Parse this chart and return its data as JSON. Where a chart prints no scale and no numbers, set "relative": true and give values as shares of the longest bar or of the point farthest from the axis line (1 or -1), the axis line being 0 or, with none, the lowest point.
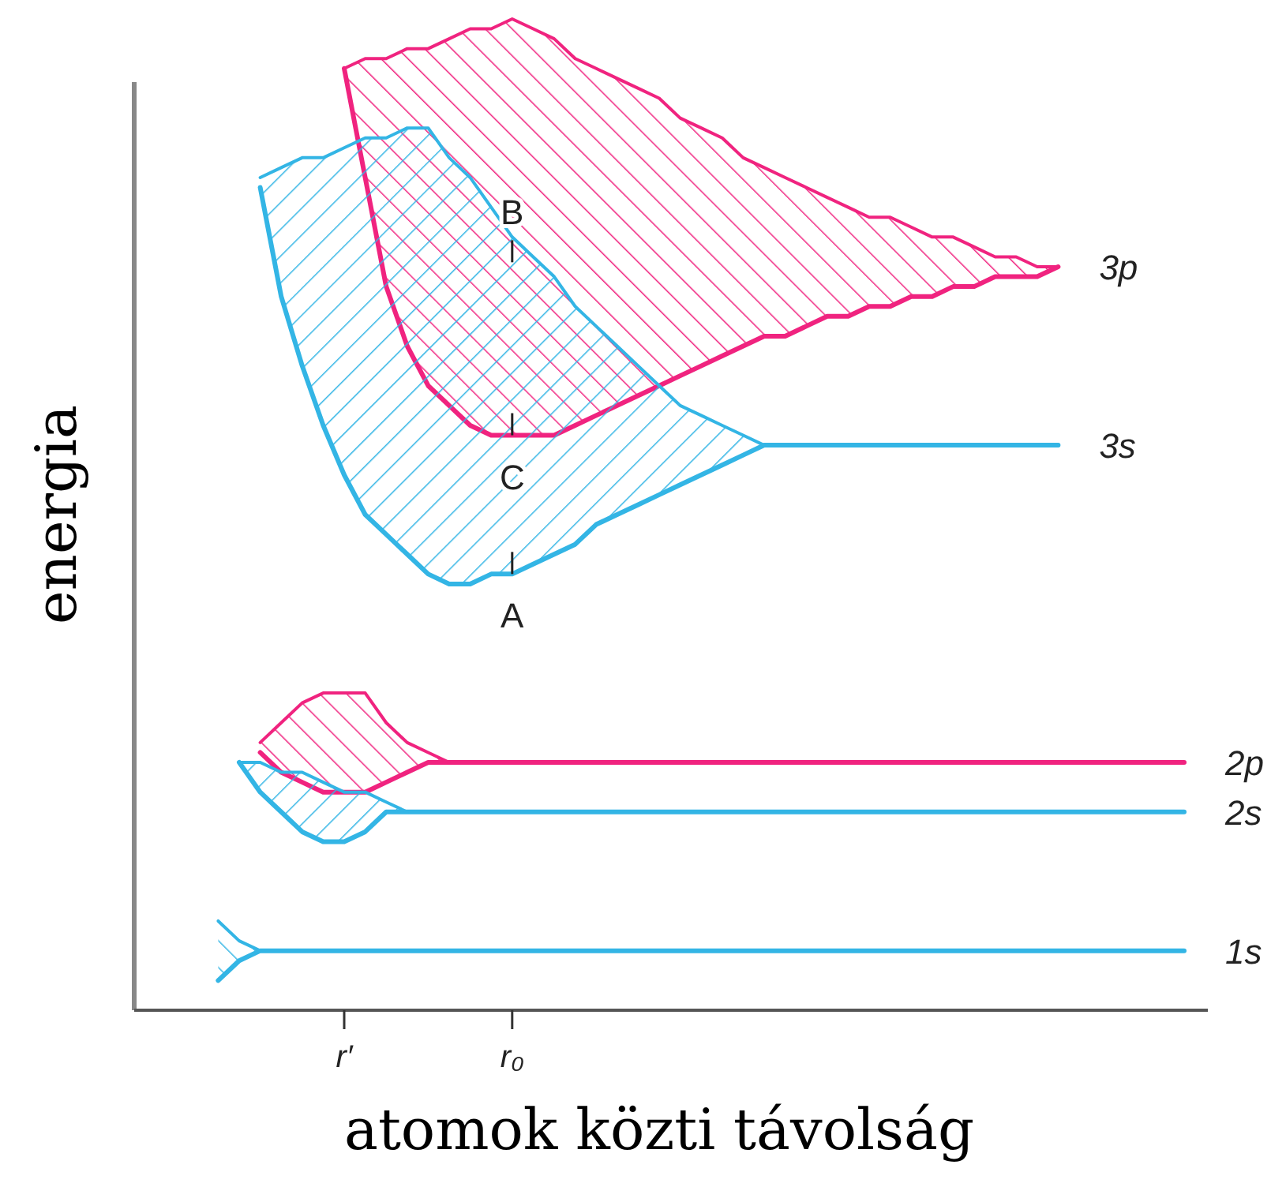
{
  "chart_data": {
    "type": "line",
    "relative": true,
    "xlabel": "atomok közti távolság",
    "ylabel": "energia",
    "categories": [
      null,
      null,
      null,
      null,
      null,
      null,
      null,
      null,
      null,
      null,
      "r′",
      null,
      null,
      null,
      null,
      null,
      null,
      null,
      "r₀",
      null,
      null,
      null,
      null,
      null,
      null,
      null,
      null,
      null,
      null,
      null,
      null,
      null,
      null,
      null,
      null,
      null,
      null,
      null,
      null,
      null,
      null,
      null,
      null,
      null,
      null,
      null,
      null,
      null,
      null,
      null,
      null
    ],
    "series": [
      {
        "name": "3p",
        "color": "#f0237f",
        "values": [
          null,
          null,
          null,
          null,
          null,
          null,
          null,
          null,
          null,
          null,
          0.95,
          0.84,
          0.73,
          0.67,
          0.63,
          0.61,
          0.59,
          0.58,
          0.58,
          0.58,
          0.58,
          0.59,
          0.6,
          0.61,
          0.62,
          0.63,
          0.64,
          0.65,
          0.66,
          0.67,
          0.68,
          0.68,
          0.69,
          0.7,
          0.7,
          0.71,
          0.71,
          0.72,
          0.72,
          0.73,
          0.73,
          0.74,
          0.74,
          0.74,
          0.75,
          null,
          null,
          null,
          null,
          null,
          null
        ],
        "lower": [
          null,
          null,
          null,
          null,
          null,
          null,
          null,
          null,
          null,
          null,
          0.95,
          0.84,
          0.73,
          0.67,
          0.63,
          0.61,
          0.59,
          0.58,
          0.58,
          0.58,
          0.58,
          0.59,
          0.6,
          0.61,
          0.62,
          0.63,
          0.64,
          0.65,
          0.66,
          0.67,
          0.68,
          0.68,
          0.69,
          0.7,
          0.7,
          0.71,
          0.71,
          0.72,
          0.72,
          0.73,
          0.73,
          0.74,
          0.74,
          0.74,
          0.75,
          null,
          null,
          null,
          null,
          null,
          null
        ],
        "upper": [
          null,
          null,
          null,
          null,
          null,
          null,
          null,
          null,
          null,
          null,
          0.95,
          0.96,
          0.96,
          0.97,
          0.97,
          0.98,
          0.99,
          0.99,
          1,
          0.99,
          0.98,
          0.96,
          0.95,
          0.94,
          0.93,
          0.92,
          0.9,
          0.89,
          0.88,
          0.86,
          0.85,
          0.84,
          0.83,
          0.82,
          0.81,
          0.8,
          0.8,
          0.79,
          0.78,
          0.78,
          0.77,
          0.76,
          0.76,
          0.75,
          0.75,
          null,
          null,
          null,
          null,
          null,
          null
        ]
      },
      {
        "color": "#f0237f",
        "values": [
          null,
          null,
          null,
          null,
          null,
          null,
          null,
          null,
          null,
          null,
          0.95,
          0.96,
          0.96,
          0.97,
          0.97,
          0.98,
          0.99,
          0.99,
          1,
          0.99,
          0.98,
          0.96,
          0.95,
          0.94,
          0.93,
          0.92,
          0.9,
          0.89,
          0.88,
          0.86,
          0.85,
          0.84,
          0.83,
          0.82,
          0.81,
          0.8,
          0.8,
          0.79,
          0.78,
          0.78,
          0.77,
          0.76,
          0.76,
          0.75,
          0.75,
          null,
          null,
          null,
          null,
          null,
          null
        ]
      },
      {
        "name": "3s",
        "color": "#33b5e5",
        "values": [
          null,
          null,
          null,
          null,
          null,
          null,
          0.83,
          0.72,
          0.65,
          0.59,
          0.54,
          0.5,
          0.48,
          0.46,
          0.44,
          0.43,
          0.43,
          0.44,
          0.44,
          0.45,
          0.46,
          0.47,
          0.49,
          0.5,
          0.51,
          0.52,
          0.53,
          0.54,
          0.55,
          0.56,
          0.57,
          0.57,
          0.57,
          0.57,
          0.57,
          0.57,
          0.57,
          0.57,
          0.57,
          0.57,
          0.57,
          0.57,
          0.57,
          0.57,
          0.57,
          null,
          null,
          null,
          null,
          null,
          null
        ],
        "lower": [
          null,
          null,
          null,
          null,
          null,
          null,
          0.83,
          0.72,
          0.65,
          0.59,
          0.54,
          0.5,
          0.48,
          0.46,
          0.44,
          0.43,
          0.43,
          0.44,
          0.44,
          0.45,
          0.46,
          0.47,
          0.49,
          0.5,
          0.51,
          0.52,
          0.53,
          0.54,
          0.55,
          0.56,
          0.57,
          null,
          null,
          null,
          null,
          null,
          null,
          null,
          null,
          null,
          null,
          null,
          null,
          null,
          null,
          null,
          null,
          null,
          null,
          null,
          null
        ],
        "upper": [
          null,
          null,
          null,
          null,
          null,
          null,
          0.84,
          0.85,
          0.86,
          0.86,
          0.87,
          0.88,
          0.88,
          0.89,
          0.89,
          0.86,
          0.84,
          0.81,
          0.78,
          0.76,
          0.74,
          0.71,
          0.69,
          0.67,
          0.65,
          0.63,
          0.61,
          0.6,
          0.59,
          0.58,
          0.57,
          null,
          null,
          null,
          null,
          null,
          null,
          null,
          null,
          null,
          null,
          null,
          null,
          null,
          null,
          null,
          null,
          null,
          null,
          null,
          null
        ]
      },
      {
        "color": "#33b5e5",
        "values": [
          null,
          null,
          null,
          null,
          null,
          null,
          0.84,
          0.85,
          0.86,
          0.86,
          0.87,
          0.88,
          0.88,
          0.89,
          0.89,
          0.86,
          0.84,
          0.81,
          0.78,
          0.76,
          0.74,
          0.71,
          0.69,
          0.67,
          0.65,
          0.63,
          0.61,
          0.6,
          0.59,
          0.58,
          0.57,
          null,
          null,
          null,
          null,
          null,
          null,
          null,
          null,
          null,
          null,
          null,
          null,
          null,
          null,
          null,
          null,
          null,
          null,
          null,
          null
        ]
      },
      {
        "name": "2p",
        "color": "#f0237f",
        "values": [
          null,
          null,
          null,
          null,
          null,
          null,
          0.26,
          0.24,
          0.23,
          0.22,
          0.22,
          0.22,
          0.23,
          0.24,
          0.25,
          0.25,
          0.25,
          0.25,
          0.25,
          0.25,
          0.25,
          0.25,
          0.25,
          0.25,
          0.25,
          0.25,
          0.25,
          0.25,
          0.25,
          0.25,
          0.25,
          0.25,
          0.25,
          0.25,
          0.25,
          0.25,
          0.25,
          0.25,
          0.25,
          0.25,
          0.25,
          0.25,
          0.25,
          0.25,
          0.25,
          0.25,
          0.25,
          0.25,
          0.25,
          0.25,
          0.25
        ],
        "lower": [
          null,
          null,
          null,
          null,
          null,
          null,
          0.26,
          0.24,
          0.23,
          0.22,
          0.22,
          0.22,
          0.23,
          0.24,
          0.25,
          0.25,
          null,
          null,
          null,
          null,
          null,
          null,
          null,
          null,
          null,
          null,
          null,
          null,
          null,
          null,
          null,
          null,
          null,
          null,
          null,
          null,
          null,
          null,
          null,
          null,
          null,
          null,
          null,
          null,
          null,
          null,
          null,
          null,
          null,
          null,
          null
        ],
        "upper": [
          null,
          null,
          null,
          null,
          null,
          null,
          0.27,
          0.29,
          0.31,
          0.32,
          0.32,
          0.32,
          0.29,
          0.27,
          0.26,
          0.25,
          null,
          null,
          null,
          null,
          null,
          null,
          null,
          null,
          null,
          null,
          null,
          null,
          null,
          null,
          null,
          null,
          null,
          null,
          null,
          null,
          null,
          null,
          null,
          null,
          null,
          null,
          null,
          null,
          null,
          null,
          null,
          null,
          null,
          null,
          null
        ]
      },
      {
        "color": "#f0237f",
        "values": [
          null,
          null,
          null,
          null,
          null,
          null,
          0.27,
          0.29,
          0.31,
          0.32,
          0.32,
          0.32,
          0.29,
          0.27,
          0.26,
          0.25,
          null,
          null,
          null,
          null,
          null,
          null,
          null,
          null,
          null,
          null,
          null,
          null,
          null,
          null,
          null,
          null,
          null,
          null,
          null,
          null,
          null,
          null,
          null,
          null,
          null,
          null,
          null,
          null,
          null,
          null,
          null,
          null,
          null,
          null,
          null
        ]
      },
      {
        "name": "2s",
        "color": "#33b5e5",
        "values": [
          null,
          null,
          null,
          null,
          null,
          0.25,
          0.22,
          0.2,
          0.18,
          0.17,
          0.17,
          0.18,
          0.2,
          0.2,
          0.2,
          0.2,
          0.2,
          0.2,
          0.2,
          0.2,
          0.2,
          0.2,
          0.2,
          0.2,
          0.2,
          0.2,
          0.2,
          0.2,
          0.2,
          0.2,
          0.2,
          0.2,
          0.2,
          0.2,
          0.2,
          0.2,
          0.2,
          0.2,
          0.2,
          0.2,
          0.2,
          0.2,
          0.2,
          0.2,
          0.2,
          0.2,
          0.2,
          0.2,
          0.2,
          0.2,
          0.2
        ],
        "lower": [
          null,
          null,
          null,
          null,
          null,
          0.25,
          0.22,
          0.2,
          0.18,
          0.17,
          0.17,
          0.18,
          0.2,
          0.2,
          null,
          null,
          null,
          null,
          null,
          null,
          null,
          null,
          null,
          null,
          null,
          null,
          null,
          null,
          null,
          null,
          null,
          null,
          null,
          null,
          null,
          null,
          null,
          null,
          null,
          null,
          null,
          null,
          null,
          null,
          null,
          null,
          null,
          null,
          null,
          null,
          null
        ],
        "upper": [
          null,
          null,
          null,
          null,
          null,
          0.25,
          0.25,
          0.24,
          0.24,
          0.23,
          0.22,
          0.22,
          0.21,
          0.2,
          null,
          null,
          null,
          null,
          null,
          null,
          null,
          null,
          null,
          null,
          null,
          null,
          null,
          null,
          null,
          null,
          null,
          null,
          null,
          null,
          null,
          null,
          null,
          null,
          null,
          null,
          null,
          null,
          null,
          null,
          null,
          null,
          null,
          null,
          null,
          null,
          null
        ]
      },
      {
        "color": "#33b5e5",
        "values": [
          null,
          null,
          null,
          null,
          null,
          0.25,
          0.25,
          0.24,
          0.24,
          0.23,
          0.22,
          0.22,
          0.21,
          0.2,
          null,
          null,
          null,
          null,
          null,
          null,
          null,
          null,
          null,
          null,
          null,
          null,
          null,
          null,
          null,
          null,
          null,
          null,
          null,
          null,
          null,
          null,
          null,
          null,
          null,
          null,
          null,
          null,
          null,
          null,
          null,
          null,
          null,
          null,
          null,
          null,
          null
        ]
      },
      {
        "name": "1s",
        "color": "#33b5e5",
        "values": [
          null,
          null,
          null,
          null,
          0.03,
          0.05,
          0.06,
          0.06,
          0.06,
          0.06,
          0.06,
          0.06,
          0.06,
          0.06,
          0.06,
          0.06,
          0.06,
          0.06,
          0.06,
          0.06,
          0.06,
          0.06,
          0.06,
          0.06,
          0.06,
          0.06,
          0.06,
          0.06,
          0.06,
          0.06,
          0.06,
          0.06,
          0.06,
          0.06,
          0.06,
          0.06,
          0.06,
          0.06,
          0.06,
          0.06,
          0.06,
          0.06,
          0.06,
          0.06,
          0.06,
          0.06,
          0.06,
          0.06,
          0.06,
          0.06,
          0.06
        ],
        "lower": [
          null,
          null,
          null,
          null,
          0.03,
          0.05,
          0.06,
          null,
          null,
          null,
          null,
          null,
          null,
          null,
          null,
          null,
          null,
          null,
          null,
          null,
          null,
          null,
          null,
          null,
          null,
          null,
          null,
          null,
          null,
          null,
          null,
          null,
          null,
          null,
          null,
          null,
          null,
          null,
          null,
          null,
          null,
          null,
          null,
          null,
          null,
          null,
          null,
          null,
          null,
          null,
          null
        ],
        "upper": [
          null,
          null,
          null,
          null,
          0.09,
          0.07,
          0.06,
          null,
          null,
          null,
          null,
          null,
          null,
          null,
          null,
          null,
          null,
          null,
          null,
          null,
          null,
          null,
          null,
          null,
          null,
          null,
          null,
          null,
          null,
          null,
          null,
          null,
          null,
          null,
          null,
          null,
          null,
          null,
          null,
          null,
          null,
          null,
          null,
          null,
          null,
          null,
          null,
          null,
          null,
          null,
          null
        ]
      },
      {
        "color": "#33b5e5",
        "values": [
          null,
          null,
          null,
          null,
          0.09,
          0.07,
          0.06,
          null,
          null,
          null,
          null,
          null,
          null,
          null,
          null,
          null,
          null,
          null,
          null,
          null,
          null,
          null,
          null,
          null,
          null,
          null,
          null,
          null,
          null,
          null,
          null,
          null,
          null,
          null,
          null,
          null,
          null,
          null,
          null,
          null,
          null,
          null,
          null,
          null,
          null,
          null,
          null,
          null,
          null,
          null,
          null
        ]
      }
    ],
    "annotations": [
      {
        "text": "B",
        "x": "r₀",
        "y": 0.78
      },
      {
        "text": "C",
        "x": "r₀",
        "y": 0.58
      },
      {
        "text": "A",
        "x": "r₀",
        "y": 0.44
      }
    ]
  }
}
